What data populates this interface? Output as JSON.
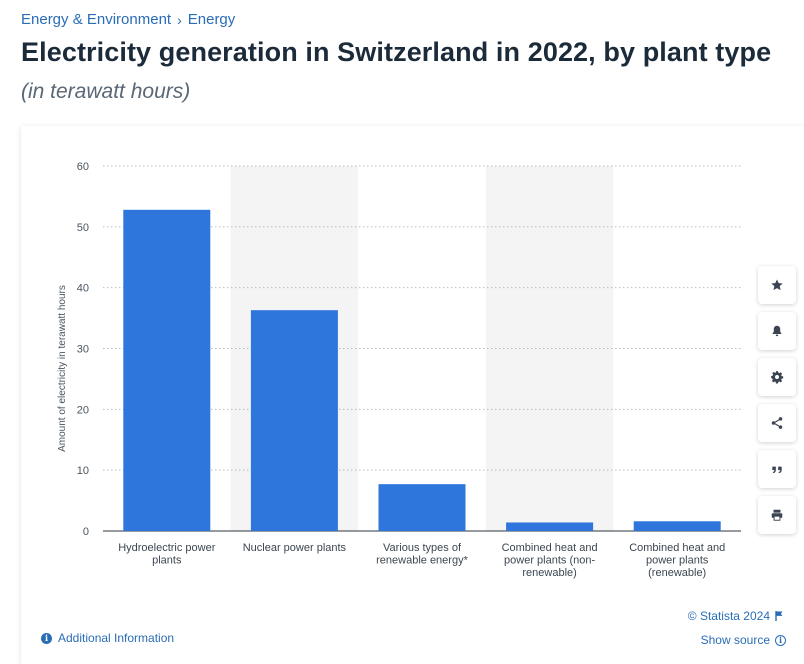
{
  "breadcrumb": {
    "items": [
      "Energy & Environment",
      "Energy"
    ],
    "separator": "›"
  },
  "header": {
    "title": "Electricity generation in Switzerland in 2022, by plant type",
    "subtitle": "(in terawatt hours)"
  },
  "toolbar": {
    "icons": [
      "star-icon",
      "bell-icon",
      "gear-icon",
      "share-icon",
      "quote-icon",
      "print-icon"
    ]
  },
  "footer": {
    "copyright": "© Statista 2024",
    "show_source": "Show source",
    "additional_info": "Additional Information"
  },
  "colors": {
    "bar": "#2f76dc",
    "band": "#f4f4f5",
    "grid": "#b8bcc2",
    "link": "#2a6db5"
  },
  "chart_data": {
    "type": "bar",
    "categories": [
      [
        "Hydroelectric power",
        "plants"
      ],
      [
        "Nuclear power plants"
      ],
      [
        "Various types of",
        "renewable energy*"
      ],
      [
        "Combined heat and",
        "power plants (non-",
        "renewable)"
      ],
      [
        "Combined heat and",
        "power plants",
        "(renewable)"
      ]
    ],
    "values": [
      52.8,
      36.3,
      7.7,
      1.4,
      1.6
    ],
    "ylabel": "Amount of electricity in terawatt hours",
    "ylim": [
      0,
      60
    ],
    "yticks": [
      0,
      10,
      20,
      30,
      40,
      50,
      60
    ],
    "grid": true,
    "alternating_bands": true
  }
}
